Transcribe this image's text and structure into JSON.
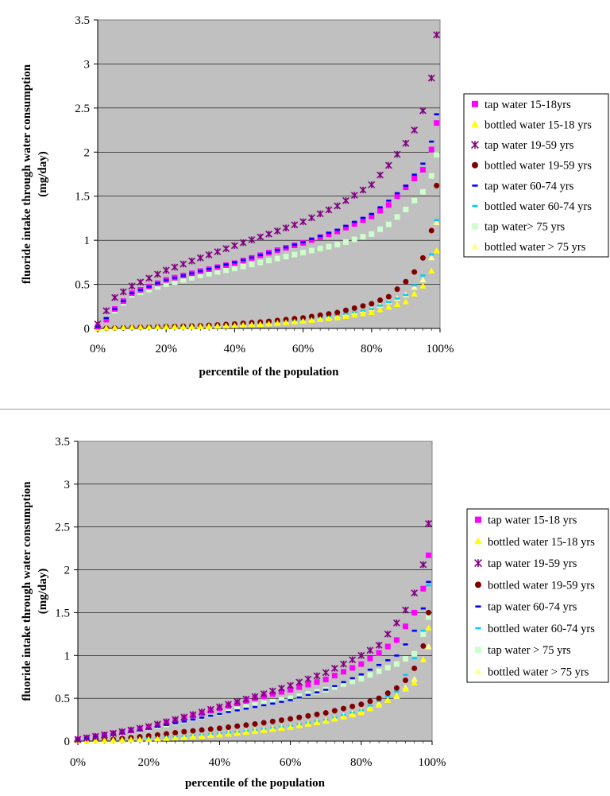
{
  "chart_data": [
    {
      "type": "scatter",
      "ylabel": "fluoride intake through water consumption (mg/day)",
      "ylabel_lines": [
        "fluoride intake through water consumption",
        "(mg/day)"
      ],
      "xlabel": "percentile of the population",
      "ylim": [
        0,
        3.5
      ],
      "xlim": [
        0,
        100
      ],
      "yticks": [
        "0",
        "0.5",
        "1",
        "1.5",
        "2",
        "2.5",
        "3",
        "3.5"
      ],
      "xticks": [
        "0%",
        "20%",
        "40%",
        "60%",
        "80%",
        "100%"
      ],
      "grid": true,
      "legend_position": "right",
      "series": [
        {
          "name": "tap water 15-18yrs",
          "marker": "square",
          "color": "#ff00ff",
          "anchors": [
            [
              0,
              0.02
            ],
            [
              2.5,
              0.1
            ],
            [
              5,
              0.22
            ],
            [
              10,
              0.4
            ],
            [
              20,
              0.55
            ],
            [
              30,
              0.65
            ],
            [
              40,
              0.74
            ],
            [
              50,
              0.86
            ],
            [
              60,
              0.97
            ],
            [
              70,
              1.1
            ],
            [
              80,
              1.27
            ],
            [
              85,
              1.4
            ],
            [
              90,
              1.6
            ],
            [
              95,
              1.8
            ],
            [
              97.5,
              2.03
            ],
            [
              99,
              2.33
            ]
          ]
        },
        {
          "name": "bottled water 15-18 yrs",
          "marker": "triangle",
          "color": "#ffff00",
          "anchors": [
            [
              0,
              0.0
            ],
            [
              10,
              0.01
            ],
            [
              20,
              0.015
            ],
            [
              30,
              0.02
            ],
            [
              40,
              0.03
            ],
            [
              50,
              0.05
            ],
            [
              60,
              0.08
            ],
            [
              70,
              0.12
            ],
            [
              80,
              0.18
            ],
            [
              90,
              0.3
            ],
            [
              95,
              0.48
            ],
            [
              97.5,
              0.65
            ],
            [
              99,
              0.88
            ]
          ]
        },
        {
          "name": "tap water 19-59 yrs",
          "marker": "star",
          "color": "#800080",
          "anchors": [
            [
              0,
              0.05
            ],
            [
              2.5,
              0.2
            ],
            [
              5,
              0.35
            ],
            [
              10,
              0.48
            ],
            [
              20,
              0.66
            ],
            [
              30,
              0.8
            ],
            [
              40,
              0.94
            ],
            [
              50,
              1.07
            ],
            [
              60,
              1.21
            ],
            [
              70,
              1.39
            ],
            [
              80,
              1.63
            ],
            [
              85,
              1.85
            ],
            [
              90,
              2.1
            ],
            [
              92.5,
              2.25
            ],
            [
              95,
              2.47
            ],
            [
              97.5,
              2.84
            ],
            [
              99,
              3.33
            ]
          ]
        },
        {
          "name": "bottled water 19-59 yrs",
          "marker": "circle",
          "color": "#800000",
          "anchors": [
            [
              0,
              0.0
            ],
            [
              10,
              0.01
            ],
            [
              20,
              0.02
            ],
            [
              30,
              0.03
            ],
            [
              40,
              0.05
            ],
            [
              50,
              0.08
            ],
            [
              60,
              0.12
            ],
            [
              70,
              0.18
            ],
            [
              80,
              0.28
            ],
            [
              85,
              0.36
            ],
            [
              90,
              0.53
            ],
            [
              92.5,
              0.64
            ],
            [
              95,
              0.8
            ],
            [
              97.5,
              1.11
            ],
            [
              99,
              1.62
            ]
          ]
        },
        {
          "name": "tap water 60-74 yrs",
          "marker": "dash",
          "color": "#0000ff",
          "anchors": [
            [
              0,
              0.02
            ],
            [
              5,
              0.22
            ],
            [
              10,
              0.4
            ],
            [
              20,
              0.55
            ],
            [
              30,
              0.65
            ],
            [
              40,
              0.75
            ],
            [
              50,
              0.86
            ],
            [
              60,
              0.98
            ],
            [
              70,
              1.12
            ],
            [
              80,
              1.3
            ],
            [
              85,
              1.45
            ],
            [
              90,
              1.62
            ],
            [
              95,
              1.87
            ],
            [
              97.5,
              2.12
            ],
            [
              99,
              2.43
            ]
          ]
        },
        {
          "name": "bottled water 60-74 yrs",
          "marker": "dash",
          "color": "#00ccff",
          "anchors": [
            [
              0,
              0.0
            ],
            [
              10,
              0.01
            ],
            [
              20,
              0.02
            ],
            [
              30,
              0.03
            ],
            [
              40,
              0.05
            ],
            [
              50,
              0.07
            ],
            [
              60,
              0.1
            ],
            [
              70,
              0.15
            ],
            [
              80,
              0.22
            ],
            [
              90,
              0.38
            ],
            [
              95,
              0.6
            ],
            [
              97.5,
              0.84
            ],
            [
              99,
              1.23
            ]
          ]
        },
        {
          "name": "tap water> 75 yrs",
          "marker": "square",
          "color": "#ccffcc",
          "anchors": [
            [
              0,
              0.02
            ],
            [
              5,
              0.2
            ],
            [
              10,
              0.38
            ],
            [
              20,
              0.5
            ],
            [
              30,
              0.6
            ],
            [
              40,
              0.68
            ],
            [
              50,
              0.77
            ],
            [
              60,
              0.86
            ],
            [
              70,
              0.95
            ],
            [
              80,
              1.07
            ],
            [
              85,
              1.18
            ],
            [
              90,
              1.35
            ],
            [
              95,
              1.55
            ],
            [
              97.5,
              1.73
            ],
            [
              99,
              1.97
            ]
          ]
        },
        {
          "name": "bottled water > 75 yrs",
          "marker": "triangle",
          "color": "#ffff99",
          "anchors": [
            [
              0,
              0.0
            ],
            [
              10,
              0.01
            ],
            [
              20,
              0.02
            ],
            [
              30,
              0.03
            ],
            [
              40,
              0.04
            ],
            [
              50,
              0.06
            ],
            [
              60,
              0.09
            ],
            [
              70,
              0.14
            ],
            [
              80,
              0.22
            ],
            [
              90,
              0.38
            ],
            [
              95,
              0.55
            ],
            [
              97.5,
              0.8
            ],
            [
              99,
              1.2
            ]
          ]
        }
      ]
    },
    {
      "type": "scatter",
      "ylabel": "fluoride intake through water consumption (mg/day)",
      "ylabel_lines": [
        "fluoride intake through water consumption",
        "(mg/day)"
      ],
      "xlabel": "percentile of the population",
      "ylim": [
        0,
        3.5
      ],
      "xlim": [
        0,
        100
      ],
      "yticks": [
        "0",
        "0.5",
        "1",
        "1.5",
        "2",
        "2.5",
        "3",
        "3.5"
      ],
      "xticks": [
        "0%",
        "20%",
        "40%",
        "60%",
        "80%",
        "100%"
      ],
      "grid": true,
      "legend_position": "right",
      "series": [
        {
          "name": "tap water 15-18 yrs",
          "marker": "square",
          "color": "#ff00ff",
          "anchors": [
            [
              0,
              0.02
            ],
            [
              10,
              0.09
            ],
            [
              20,
              0.16
            ],
            [
              30,
              0.27
            ],
            [
              40,
              0.38
            ],
            [
              50,
              0.5
            ],
            [
              60,
              0.6
            ],
            [
              70,
              0.72
            ],
            [
              80,
              0.9
            ],
            [
              85,
              1.03
            ],
            [
              90,
              1.18
            ],
            [
              95,
              1.5
            ],
            [
              97.5,
              1.78
            ],
            [
              99,
              2.17
            ]
          ]
        },
        {
          "name": "bottled water 15-18 yrs",
          "marker": "triangle",
          "color": "#ffff00",
          "anchors": [
            [
              0,
              0.0
            ],
            [
              10,
              0.01
            ],
            [
              20,
              0.02
            ],
            [
              30,
              0.04
            ],
            [
              40,
              0.07
            ],
            [
              50,
              0.11
            ],
            [
              60,
              0.16
            ],
            [
              70,
              0.23
            ],
            [
              80,
              0.33
            ],
            [
              85,
              0.42
            ],
            [
              90,
              0.53
            ],
            [
              95,
              0.68
            ],
            [
              97.5,
              0.95
            ],
            [
              99,
              1.32
            ]
          ]
        },
        {
          "name": "tap water 19-59 yrs",
          "marker": "star",
          "color": "#800080",
          "anchors": [
            [
              0,
              0.02
            ],
            [
              10,
              0.09
            ],
            [
              20,
              0.17
            ],
            [
              30,
              0.28
            ],
            [
              40,
              0.4
            ],
            [
              50,
              0.52
            ],
            [
              60,
              0.65
            ],
            [
              70,
              0.8
            ],
            [
              80,
              1.0
            ],
            [
              85,
              1.12
            ],
            [
              90,
              1.38
            ],
            [
              92.5,
              1.53
            ],
            [
              95,
              1.73
            ],
            [
              97.5,
              2.06
            ],
            [
              99,
              2.54
            ]
          ]
        },
        {
          "name": "bottled water 19-59 yrs",
          "marker": "circle",
          "color": "#800000",
          "anchors": [
            [
              0,
              0.0
            ],
            [
              10,
              0.02
            ],
            [
              20,
              0.06
            ],
            [
              30,
              0.11
            ],
            [
              40,
              0.15
            ],
            [
              50,
              0.2
            ],
            [
              60,
              0.26
            ],
            [
              70,
              0.33
            ],
            [
              80,
              0.43
            ],
            [
              85,
              0.5
            ],
            [
              90,
              0.62
            ],
            [
              92.5,
              0.71
            ],
            [
              95,
              0.85
            ],
            [
              97.5,
              1.11
            ],
            [
              99,
              1.5
            ]
          ]
        },
        {
          "name": "tap water 60-74 yrs",
          "marker": "dash",
          "color": "#0000ff",
          "anchors": [
            [
              0,
              0.02
            ],
            [
              10,
              0.08
            ],
            [
              20,
              0.15
            ],
            [
              30,
              0.23
            ],
            [
              40,
              0.32
            ],
            [
              50,
              0.4
            ],
            [
              60,
              0.48
            ],
            [
              70,
              0.6
            ],
            [
              80,
              0.78
            ],
            [
              90,
              1.0
            ],
            [
              92.5,
              1.13
            ],
            [
              95,
              1.29
            ],
            [
              97.5,
              1.55
            ],
            [
              99,
              1.86
            ]
          ]
        },
        {
          "name": "bottled water 60-74 yrs",
          "marker": "dash",
          "color": "#00ccff",
          "anchors": [
            [
              0,
              0.0
            ],
            [
              10,
              0.01
            ],
            [
              20,
              0.03
            ],
            [
              30,
              0.06
            ],
            [
              40,
              0.09
            ],
            [
              50,
              0.13
            ],
            [
              60,
              0.18
            ],
            [
              70,
              0.25
            ],
            [
              80,
              0.36
            ],
            [
              90,
              0.58
            ],
            [
              95,
              0.97
            ],
            [
              97.5,
              1.29
            ],
            [
              99,
              1.82
            ]
          ]
        },
        {
          "name": "tap water > 75 yrs",
          "marker": "square",
          "color": "#ccffcc",
          "anchors": [
            [
              0,
              0.02
            ],
            [
              10,
              0.08
            ],
            [
              20,
              0.15
            ],
            [
              30,
              0.24
            ],
            [
              40,
              0.33
            ],
            [
              50,
              0.42
            ],
            [
              60,
              0.5
            ],
            [
              70,
              0.6
            ],
            [
              80,
              0.73
            ],
            [
              90,
              0.9
            ],
            [
              95,
              1.02
            ],
            [
              97.5,
              1.25
            ],
            [
              99,
              1.45
            ]
          ]
        },
        {
          "name": "bottled water > 75 yrs",
          "marker": "triangle",
          "color": "#ffff99",
          "anchors": [
            [
              0,
              0.0
            ],
            [
              10,
              0.01
            ],
            [
              20,
              0.03
            ],
            [
              30,
              0.05
            ],
            [
              40,
              0.08
            ],
            [
              50,
              0.12
            ],
            [
              60,
              0.17
            ],
            [
              70,
              0.24
            ],
            [
              80,
              0.35
            ],
            [
              90,
              0.52
            ],
            [
              95,
              0.72
            ],
            [
              97.5,
              0.95
            ],
            [
              99,
              1.1
            ]
          ]
        }
      ]
    }
  ]
}
